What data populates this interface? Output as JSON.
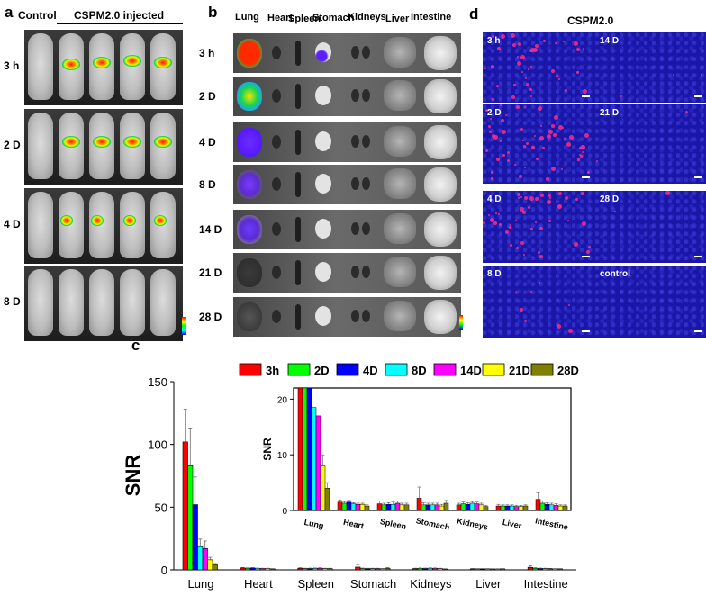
{
  "panel_a": {
    "letter": "a",
    "header_control": "Control",
    "header_injected": "CSPM2.0 injected",
    "rows": [
      "3 h",
      "2 D",
      "4 D",
      "8 D"
    ]
  },
  "panel_b": {
    "letter": "b",
    "organs": [
      "Lung",
      "Heart",
      "Spleen",
      "Stomach",
      "Kidneys",
      "Liver",
      "Intestine"
    ],
    "rows": [
      "3 h",
      "2 D",
      "4 D",
      "8 D",
      "14 D",
      "21 D",
      "28 D"
    ]
  },
  "panel_d": {
    "letter": "d",
    "title": "CSPM2.0",
    "left_tiles": [
      "3 h",
      "2 D",
      "4 D",
      "8 D"
    ],
    "right_tiles": [
      "14 D",
      "21 D",
      "28 D",
      "control"
    ],
    "colors": {
      "nuclei": "#1a17a8",
      "signal": "#ff2b8a"
    }
  },
  "panel_c": {
    "letter": "c"
  },
  "chart_data": [
    {
      "type": "bar",
      "ylabel": "SNR",
      "ylim": [
        0,
        150
      ],
      "yticks": [
        0,
        50,
        100,
        150
      ],
      "categories": [
        "Lung",
        "Heart",
        "Spleen",
        "Stomach",
        "Kidneys",
        "Liver",
        "Intestine"
      ],
      "legend_position": "top",
      "series": [
        {
          "name": "3h",
          "color": "#ff0000",
          "values": [
            102,
            1.5,
            1.2,
            2.2,
            1.0,
            0.8,
            2.0
          ],
          "errors": [
            26,
            0.4,
            0.5,
            2.0,
            0.3,
            0.3,
            1.2
          ]
        },
        {
          "name": "2D",
          "color": "#00ff00",
          "values": [
            83,
            1.3,
            1.0,
            1.0,
            1.2,
            0.8,
            1.3
          ],
          "errors": [
            30,
            0.3,
            0.3,
            0.4,
            0.3,
            0.2,
            0.4
          ]
        },
        {
          "name": "4D",
          "color": "#0000ff",
          "values": [
            52,
            1.5,
            1.1,
            1.0,
            1.1,
            0.8,
            1.1
          ],
          "errors": [
            22,
            0.3,
            0.3,
            0.3,
            0.3,
            0.2,
            0.3
          ]
        },
        {
          "name": "8D",
          "color": "#00ffff",
          "values": [
            18.5,
            1.2,
            1.1,
            1.0,
            1.3,
            0.8,
            1.0
          ],
          "errors": [
            6,
            0.2,
            0.4,
            0.3,
            0.3,
            0.2,
            0.3
          ]
        },
        {
          "name": "14D",
          "color": "#ff00ff",
          "values": [
            17,
            1.1,
            1.3,
            1.0,
            1.2,
            0.7,
            0.9
          ],
          "errors": [
            6,
            0.2,
            0.4,
            0.3,
            0.3,
            0.2,
            0.3
          ]
        },
        {
          "name": "21D",
          "color": "#ffff00",
          "values": [
            8,
            1.1,
            1.0,
            0.8,
            1.0,
            0.7,
            0.8
          ],
          "errors": [
            2,
            0.2,
            0.3,
            0.3,
            0.3,
            0.2,
            0.2
          ]
        },
        {
          "name": "28D",
          "color": "#808000",
          "values": [
            4,
            0.8,
            1.0,
            1.3,
            0.7,
            0.8,
            0.8
          ],
          "errors": [
            1,
            0.2,
            0.3,
            0.5,
            0.2,
            0.2,
            0.2
          ]
        }
      ]
    },
    {
      "type": "bar",
      "ylabel": "SNR",
      "ylim": [
        0,
        22
      ],
      "yticks": [
        0,
        10,
        20
      ],
      "categories": [
        "Lung",
        "Heart",
        "Spleen",
        "Stomach",
        "Kidneys",
        "Liver",
        "Intestine"
      ],
      "series_ref": "same as main chart (values clipped at axis top)"
    }
  ]
}
